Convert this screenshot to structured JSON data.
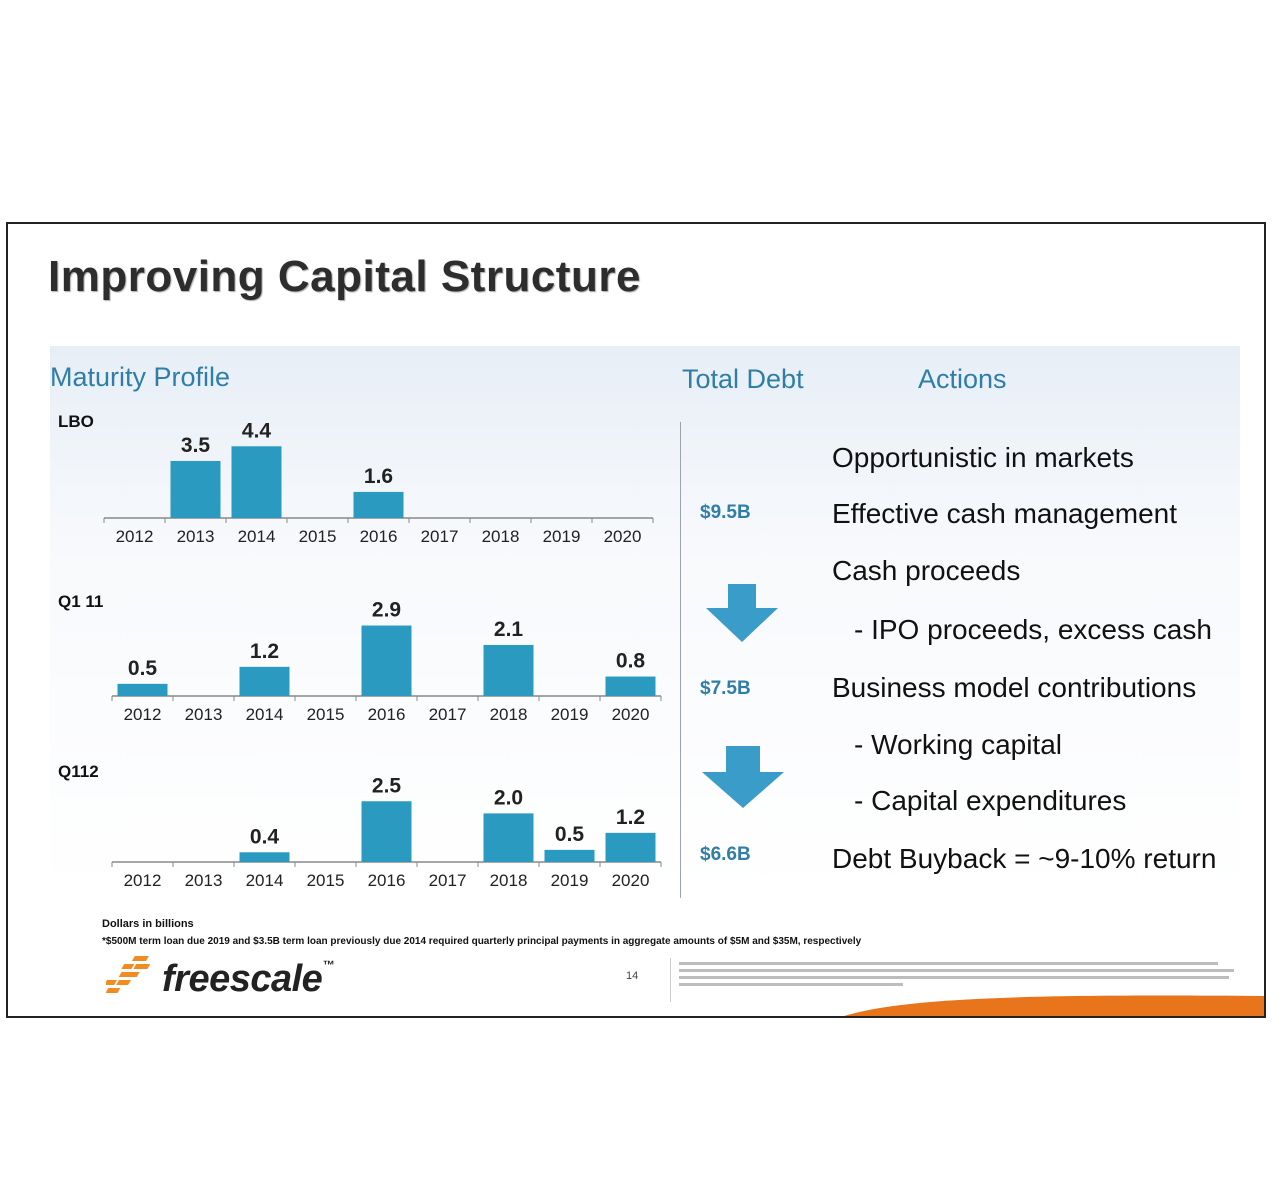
{
  "slide": {
    "title": "Improving Capital Structure"
  },
  "headers": {
    "maturity": "Maturity Profile",
    "total_debt": "Total Debt",
    "actions": "Actions"
  },
  "colors": {
    "bar": "#2a9ac0",
    "bar_dark": "#1c7fa3",
    "accent_text": "#2f7ea8",
    "arrow": "#3a9cc8",
    "logo_orange": "#f28c1e",
    "swoosh": "#e8741c"
  },
  "chart_data": [
    {
      "type": "bar",
      "title": "LBO",
      "categories": [
        "2012",
        "2013",
        "2014",
        "2015",
        "2016",
        "2017",
        "2018",
        "2019",
        "2020"
      ],
      "values": [
        null,
        3.5,
        4.4,
        null,
        1.6,
        null,
        null,
        null,
        null
      ],
      "labels": [
        "",
        "3.5",
        "4.4",
        "",
        "1.6",
        "",
        "",
        "",
        ""
      ],
      "ylim": [
        0,
        4.5
      ]
    },
    {
      "type": "bar",
      "title": "Q1 11",
      "categories": [
        "2012",
        "2013",
        "2014",
        "2015",
        "2016",
        "2017",
        "2018",
        "2019",
        "2020"
      ],
      "values": [
        0.5,
        null,
        1.2,
        null,
        2.9,
        null,
        2.1,
        null,
        0.8
      ],
      "labels": [
        "0.5",
        "",
        "1.2",
        "",
        "2.9",
        "",
        "2.1",
        "",
        "0.8"
      ],
      "ylim": [
        0,
        4.5
      ]
    },
    {
      "type": "bar",
      "title": "Q112",
      "categories": [
        "2012",
        "2013",
        "2014",
        "2015",
        "2016",
        "2017",
        "2018",
        "2019",
        "2020"
      ],
      "values": [
        null,
        null,
        0.4,
        null,
        2.5,
        null,
        2.0,
        0.5,
        1.2
      ],
      "labels": [
        "",
        "",
        "0.4",
        "",
        "2.5",
        "",
        "2.0",
        "0.5",
        "1.2"
      ],
      "ylim": [
        0,
        4.5
      ]
    }
  ],
  "total_debt": {
    "values": [
      "$9.5B",
      "$7.5B",
      "$6.6B"
    ],
    "arrow_icon": "down-arrow-icon"
  },
  "actions": [
    "Opportunistic in markets",
    "Effective cash management",
    "Cash proceeds",
    "- IPO proceeds, excess cash",
    "Business model contributions",
    "- Working capital",
    "- Capital expenditures",
    "Debt Buyback = ~9-10% return"
  ],
  "footnotes": {
    "units": "Dollars in billions",
    "note": "*$500M term loan due 2019 and $3.5B term loan previously due 2014 required quarterly principal payments in aggregate amounts of $5M and $35M, respectively"
  },
  "footer": {
    "logo": "freescale",
    "trademark": "™",
    "page_number": "14"
  }
}
